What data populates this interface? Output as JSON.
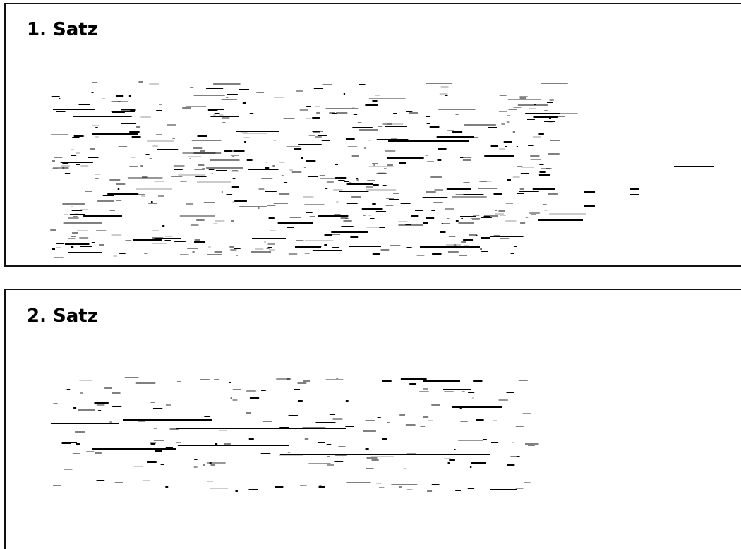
{
  "panels": [
    {
      "title": "1. Satz"
    },
    {
      "title": "2. Satz"
    }
  ]
}
